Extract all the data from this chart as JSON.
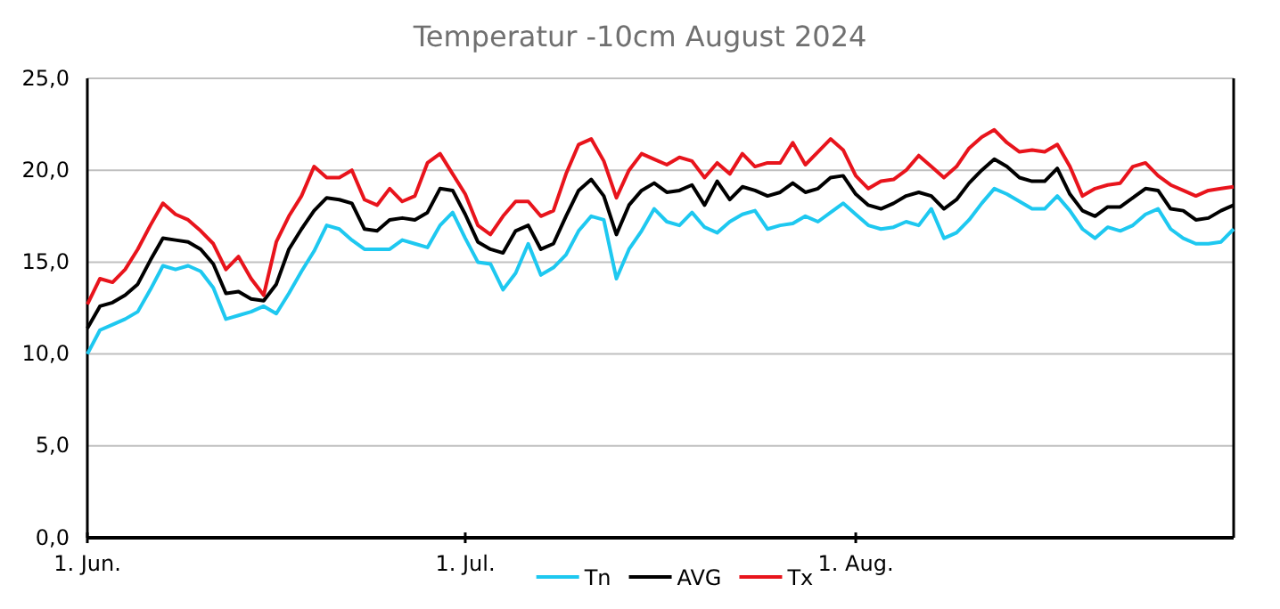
{
  "chart_data": {
    "type": "line",
    "title": "Temperatur -10cm August 2024",
    "x": [
      "2024-06-01",
      "2024-06-02",
      "2024-06-03",
      "2024-06-04",
      "2024-06-05",
      "2024-06-06",
      "2024-06-07",
      "2024-06-08",
      "2024-06-09",
      "2024-06-10",
      "2024-06-11",
      "2024-06-12",
      "2024-06-13",
      "2024-06-14",
      "2024-06-15",
      "2024-06-16",
      "2024-06-17",
      "2024-06-18",
      "2024-06-19",
      "2024-06-20",
      "2024-06-21",
      "2024-06-22",
      "2024-06-23",
      "2024-06-24",
      "2024-06-25",
      "2024-06-26",
      "2024-06-27",
      "2024-06-28",
      "2024-06-29",
      "2024-06-30",
      "2024-07-01",
      "2024-07-02",
      "2024-07-03",
      "2024-07-04",
      "2024-07-05",
      "2024-07-06",
      "2024-07-07",
      "2024-07-08",
      "2024-07-09",
      "2024-07-10",
      "2024-07-11",
      "2024-07-12",
      "2024-07-13",
      "2024-07-14",
      "2024-07-15",
      "2024-07-16",
      "2024-07-17",
      "2024-07-18",
      "2024-07-19",
      "2024-07-20",
      "2024-07-21",
      "2024-07-22",
      "2024-07-23",
      "2024-07-24",
      "2024-07-25",
      "2024-07-26",
      "2024-07-27",
      "2024-07-28",
      "2024-07-29",
      "2024-07-30",
      "2024-07-31",
      "2024-08-01",
      "2024-08-02",
      "2024-08-03",
      "2024-08-04",
      "2024-08-05",
      "2024-08-06",
      "2024-08-07",
      "2024-08-08",
      "2024-08-09",
      "2024-08-10",
      "2024-08-11",
      "2024-08-12",
      "2024-08-13",
      "2024-08-14",
      "2024-08-15",
      "2024-08-16",
      "2024-08-17",
      "2024-08-18",
      "2024-08-19",
      "2024-08-20",
      "2024-08-21",
      "2024-08-22",
      "2024-08-23",
      "2024-08-24",
      "2024-08-25",
      "2024-08-26",
      "2024-08-27",
      "2024-08-28",
      "2024-08-29",
      "2024-08-30",
      "2024-08-31"
    ],
    "series": [
      {
        "name": "Tn",
        "color": "#1ec8f0",
        "values": [
          10.0,
          11.3,
          11.6,
          11.9,
          12.3,
          13.5,
          14.8,
          14.6,
          14.8,
          14.5,
          13.6,
          11.9,
          12.1,
          12.3,
          12.6,
          12.2,
          13.3,
          14.5,
          15.6,
          17.0,
          16.8,
          16.2,
          15.7,
          15.7,
          15.7,
          16.2,
          16.0,
          15.8,
          17.0,
          17.7,
          16.3,
          15.0,
          14.9,
          13.5,
          14.4,
          16.0,
          14.3,
          14.7,
          15.4,
          16.7,
          17.5,
          17.3,
          14.1,
          15.7,
          16.7,
          17.9,
          17.2,
          17.0,
          17.7,
          16.9,
          16.6,
          17.2,
          17.6,
          17.8,
          16.8,
          17.0,
          17.1,
          17.5,
          17.2,
          17.7,
          18.2,
          17.6,
          17.0,
          16.8,
          16.9,
          17.2,
          17.0,
          17.9,
          16.3,
          16.6,
          17.3,
          18.2,
          19.0,
          18.7,
          18.3,
          17.9,
          17.9,
          18.6,
          17.8,
          16.8,
          16.3,
          16.9,
          16.7,
          17.0,
          17.6,
          17.9,
          16.8,
          16.3,
          16.0,
          16.0,
          16.1,
          16.8
        ]
      },
      {
        "name": "AVG",
        "color": "#000000",
        "values": [
          11.4,
          12.6,
          12.8,
          13.2,
          13.8,
          15.1,
          16.3,
          16.2,
          16.1,
          15.7,
          14.9,
          13.3,
          13.4,
          13.0,
          12.9,
          13.8,
          15.7,
          16.8,
          17.8,
          18.5,
          18.4,
          18.2,
          16.8,
          16.7,
          17.3,
          17.4,
          17.3,
          17.7,
          19.0,
          18.9,
          17.6,
          16.1,
          15.7,
          15.5,
          16.7,
          17.0,
          15.7,
          16.0,
          17.5,
          18.9,
          19.5,
          18.6,
          16.5,
          18.1,
          18.9,
          19.3,
          18.8,
          18.9,
          19.2,
          18.1,
          19.4,
          18.4,
          19.1,
          18.9,
          18.6,
          18.8,
          19.3,
          18.8,
          19.0,
          19.6,
          19.7,
          18.7,
          18.1,
          17.9,
          18.2,
          18.6,
          18.8,
          18.6,
          17.9,
          18.4,
          19.3,
          20.0,
          20.6,
          20.2,
          19.6,
          19.4,
          19.4,
          20.1,
          18.7,
          17.8,
          17.5,
          18.0,
          18.0,
          18.5,
          19.0,
          18.9,
          17.9,
          17.8,
          17.3,
          17.4,
          17.8,
          18.1
        ]
      },
      {
        "name": "Tx",
        "color": "#e8141c",
        "values": [
          12.7,
          14.1,
          13.9,
          14.6,
          15.7,
          17.0,
          18.2,
          17.6,
          17.3,
          16.7,
          16.0,
          14.6,
          15.3,
          14.1,
          13.2,
          16.1,
          17.5,
          18.6,
          20.2,
          19.6,
          19.6,
          20.0,
          18.4,
          18.1,
          19.0,
          18.3,
          18.6,
          20.4,
          20.9,
          19.8,
          18.7,
          17.0,
          16.5,
          17.5,
          18.3,
          18.3,
          17.5,
          17.8,
          19.8,
          21.4,
          21.7,
          20.5,
          18.5,
          20.0,
          20.9,
          20.6,
          20.3,
          20.7,
          20.5,
          19.6,
          20.4,
          19.8,
          20.9,
          20.2,
          20.4,
          20.4,
          21.5,
          20.3,
          21.0,
          21.7,
          21.1,
          19.7,
          19.0,
          19.4,
          19.5,
          20.0,
          20.8,
          20.2,
          19.6,
          20.2,
          21.2,
          21.8,
          22.2,
          21.5,
          21.0,
          21.1,
          21.0,
          21.4,
          20.2,
          18.6,
          19.0,
          19.2,
          19.3,
          20.2,
          20.4,
          19.7,
          19.2,
          18.9,
          18.6,
          18.9,
          19.0,
          19.1
        ]
      }
    ],
    "xlim": [
      "2024-06-01",
      "2024-08-31"
    ],
    "xticks": [
      {
        "value": "2024-06-01",
        "label": "1. Jun."
      },
      {
        "value": "2024-07-01",
        "label": "1. Jul."
      },
      {
        "value": "2024-08-01",
        "label": "1. Aug."
      }
    ],
    "ylim": [
      0,
      25
    ],
    "yticks": [
      {
        "value": 0,
        "label": "0,0"
      },
      {
        "value": 5,
        "label": "5,0"
      },
      {
        "value": 10,
        "label": "10,0"
      },
      {
        "value": 15,
        "label": "15,0"
      },
      {
        "value": 20,
        "label": "20,0"
      },
      {
        "value": 25,
        "label": "25,0"
      }
    ],
    "grid": "y",
    "legend": "bottom",
    "marker": "none",
    "line_style": "solid"
  }
}
